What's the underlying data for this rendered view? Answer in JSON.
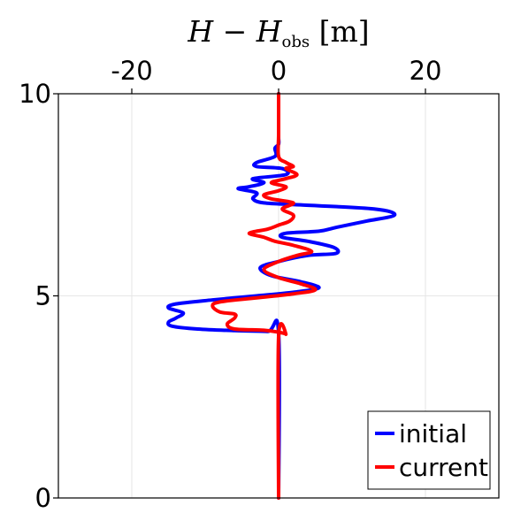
{
  "chart_data": {
    "type": "line",
    "xlabel": {
      "main": "H",
      "minus": " − ",
      "var": "H",
      "sub": "obs",
      "unit": " [m]"
    },
    "ylabel": "",
    "xlim": [
      -30,
      30
    ],
    "ylim": [
      0,
      10
    ],
    "xticks": [
      -20,
      0,
      20
    ],
    "xtick_labels": [
      "-20",
      "0",
      "20"
    ],
    "yticks": [
      0,
      5,
      10
    ],
    "ytick_labels": [
      "0",
      "5",
      "10"
    ],
    "x_axis_position": "top",
    "grid": true,
    "legend_position": "bottom-right",
    "series": [
      {
        "name": "initial",
        "color": "#0000ff",
        "points": [
          [
            0,
            0
          ],
          [
            0,
            4.08
          ],
          [
            -1.5,
            4.12
          ],
          [
            -6,
            4.14
          ],
          [
            -11,
            4.18
          ],
          [
            -14.5,
            4.25
          ],
          [
            -15,
            4.35
          ],
          [
            -14,
            4.45
          ],
          [
            -13,
            4.58
          ],
          [
            -15,
            4.7
          ],
          [
            -14,
            4.8
          ],
          [
            -9,
            4.9
          ],
          [
            -3,
            5.0
          ],
          [
            2.5,
            5.1
          ],
          [
            5.5,
            5.2
          ],
          [
            3,
            5.35
          ],
          [
            -1,
            5.5
          ],
          [
            -2.5,
            5.7
          ],
          [
            0,
            5.85
          ],
          [
            4,
            6.0
          ],
          [
            7.8,
            6.05
          ],
          [
            7.5,
            6.2
          ],
          [
            4,
            6.35
          ],
          [
            0.5,
            6.45
          ],
          [
            1,
            6.55
          ],
          [
            5.5,
            6.6
          ],
          [
            8,
            6.7
          ],
          [
            12,
            6.85
          ],
          [
            15.8,
            7.0
          ],
          [
            13,
            7.15
          ],
          [
            3,
            7.25
          ],
          [
            -2,
            7.3
          ],
          [
            -3.5,
            7.4
          ],
          [
            -3,
            7.55
          ],
          [
            -5.5,
            7.65
          ],
          [
            -4,
            7.7
          ],
          [
            -2,
            7.8
          ],
          [
            -3.5,
            7.9
          ],
          [
            1,
            8.0
          ],
          [
            0.5,
            8.15
          ],
          [
            -3,
            8.2
          ],
          [
            -3,
            8.3
          ],
          [
            -0.5,
            8.45
          ],
          [
            -0.5,
            8.65
          ],
          [
            0,
            8.75
          ],
          [
            0,
            8.9
          ],
          [
            0,
            9.0
          ],
          [
            0,
            10
          ]
        ]
      },
      {
        "name": "current",
        "color": "#ff0000",
        "points": [
          [
            0,
            0
          ],
          [
            0,
            4.0
          ],
          [
            1,
            4.05
          ],
          [
            0,
            4.1
          ],
          [
            -2,
            4.15
          ],
          [
            -6,
            4.18
          ],
          [
            -7,
            4.3
          ],
          [
            -6,
            4.45
          ],
          [
            -6,
            4.55
          ],
          [
            -8,
            4.6
          ],
          [
            -9,
            4.75
          ],
          [
            -8,
            4.85
          ],
          [
            -3,
            4.95
          ],
          [
            2,
            5.05
          ],
          [
            5,
            5.15
          ],
          [
            3,
            5.3
          ],
          [
            0,
            5.45
          ],
          [
            -2,
            5.65
          ],
          [
            0,
            5.85
          ],
          [
            2.5,
            6.0
          ],
          [
            4.5,
            6.1
          ],
          [
            2,
            6.25
          ],
          [
            -0.5,
            6.35
          ],
          [
            -2,
            6.45
          ],
          [
            -4,
            6.55
          ],
          [
            -1.5,
            6.65
          ],
          [
            0,
            6.75
          ],
          [
            1.5,
            6.85
          ],
          [
            2,
            7.0
          ],
          [
            0.5,
            7.15
          ],
          [
            2,
            7.3
          ],
          [
            -1,
            7.4
          ],
          [
            -2,
            7.5
          ],
          [
            0,
            7.6
          ],
          [
            1,
            7.7
          ],
          [
            -1,
            7.8
          ],
          [
            1,
            7.9
          ],
          [
            2.5,
            8.0
          ],
          [
            1,
            8.15
          ],
          [
            2,
            8.2
          ],
          [
            1,
            8.3
          ],
          [
            0,
            8.45
          ],
          [
            0,
            9.0
          ],
          [
            0,
            10
          ]
        ]
      }
    ]
  }
}
